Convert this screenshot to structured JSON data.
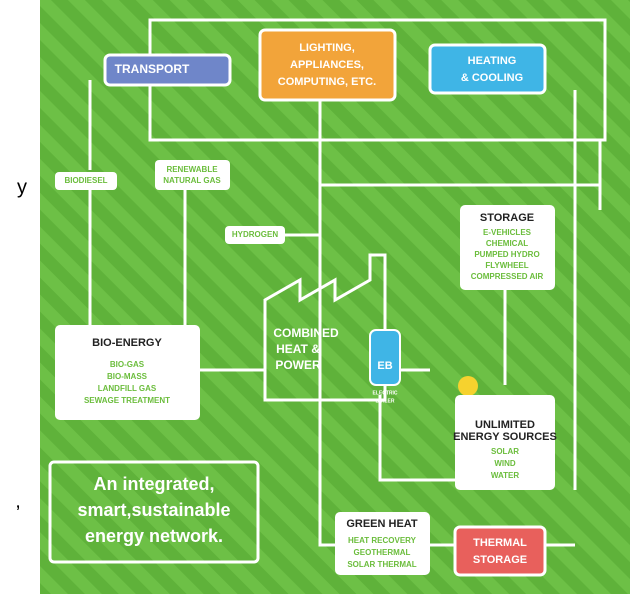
{
  "fragments": [
    "y",
    ","
  ],
  "nodes": [
    {
      "title": "TRANSPORT"
    },
    {
      "title": "LIGHTING,",
      "items": [
        "APPLIANCES,",
        "COMPUTING, ETC."
      ]
    },
    {
      "title": "HEATING",
      "items": [
        "& COOLING"
      ]
    },
    {
      "title": "BIODIESEL"
    },
    {
      "title": "RENEWABLE",
      "items": [
        "NATURAL GAS"
      ]
    },
    {
      "title": "HYDROGEN"
    },
    {
      "title": "STORAGE",
      "items": [
        "E-VEHICLES",
        "CHEMICAL",
        "PUMPED HYDRO",
        "FLYWHEEL",
        "COMPRESSED AIR"
      ]
    },
    {
      "title": "BIO-ENERGY",
      "items": [
        "BIO-GAS",
        "BIO-MASS",
        "LANDFILL GAS",
        "SEWAGE TREATMENT"
      ]
    },
    {
      "title": "COMBINED",
      "items": [
        "HEAT &",
        "POWER"
      ]
    },
    {
      "title": "EB",
      "items": [
        "ELECTRIC",
        "BOILER"
      ]
    },
    {
      "title": "UNLIMITED",
      "items": [
        "ENERGY SOURCES",
        "SOLAR",
        "WIND",
        "WATER"
      ]
    },
    {
      "title": "GREEN HEAT",
      "items": [
        "HEAT RECOVERY",
        "GEOTHERMAL",
        "SOLAR THERMAL"
      ]
    },
    {
      "title": "THERMAL",
      "items": [
        "STORAGE"
      ]
    }
  ],
  "tagline": [
    "An integrated,",
    "smart,sustainable",
    "energy network."
  ]
}
